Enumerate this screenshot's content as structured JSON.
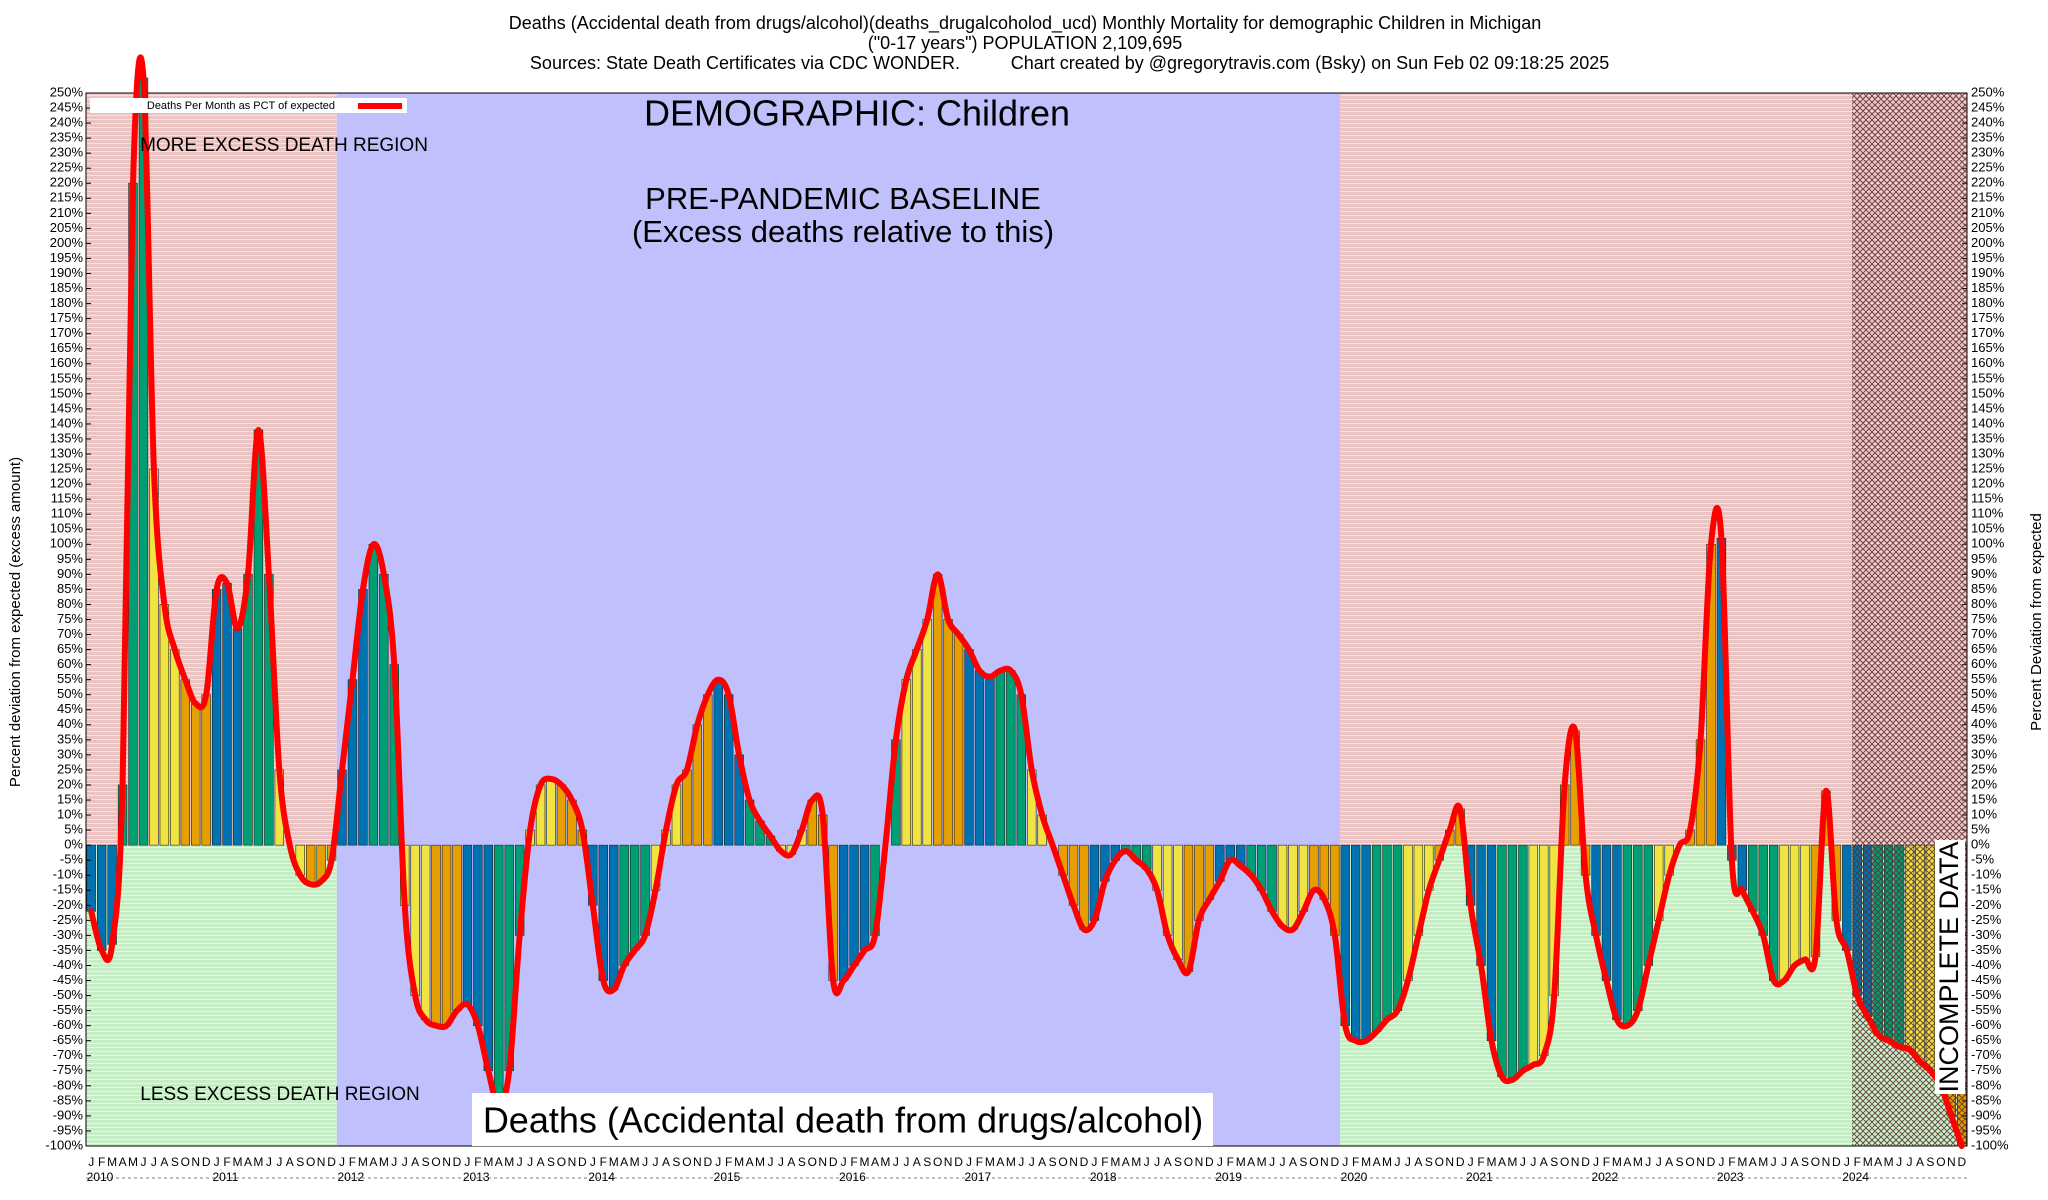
{
  "chart_data": {
    "type": "bar",
    "title": "Deaths (Accidental death from drugs/alcohol)(deaths_drugalcoholod_ucd) Monthly Mortality for demographic Children in Michigan",
    "subtitle": "(\"0-17 years\") POPULATION 2,109,695",
    "source": "Sources: State Death Certificates via CDC WONDER.",
    "credit": "Chart created by @gregorytravis.com (Bsky) on Sun Feb 02 09:18:25 2025",
    "annotations": {
      "demographic": "DEMOGRAPHIC: Children",
      "baseline": "PRE-PANDEMIC BASELINE",
      "baseline_note": "(Excess deaths relative to this)",
      "more": "MORE EXCESS DEATH REGION",
      "less": "LESS EXCESS DEATH REGION",
      "cause": "Deaths (Accidental death from drugs/alcohol)",
      "incomplete": "INCOMPLETE DATA"
    },
    "y_label": "Percent deviation from expected (excess amount)",
    "y2_label": "Percent Deviation from expected",
    "legend": "top-left",
    "series": [
      {
        "name": "Deaths Per Month as PCT of expected",
        "color": "#ff0000",
        "quarter_colors": [
          "#0072b2",
          "#009e73",
          "#f0e442",
          "#e69f00"
        ],
        "values": [
          -22,
          -35,
          -33,
          20,
          220,
          255,
          125,
          80,
          65,
          55,
          47,
          50,
          85,
          87,
          72,
          90,
          138,
          90,
          25,
          0,
          -10,
          -13,
          -12,
          -5,
          25,
          55,
          85,
          100,
          90,
          60,
          -20,
          -50,
          -58,
          -60,
          -60,
          -55,
          -53,
          -60,
          -75,
          -87,
          -75,
          -30,
          5,
          20,
          22,
          20,
          15,
          5,
          -20,
          -45,
          -48,
          -40,
          -35,
          -30,
          -15,
          5,
          20,
          25,
          40,
          50,
          55,
          50,
          30,
          15,
          8,
          3,
          -2,
          -3,
          5,
          15,
          10,
          -45,
          -45,
          -40,
          -35,
          -30,
          0,
          35,
          55,
          65,
          75,
          90,
          75,
          70,
          65,
          58,
          56,
          58,
          58,
          50,
          25,
          10,
          0,
          -10,
          -20,
          -28,
          -25,
          -12,
          -5,
          -2,
          -5,
          -8,
          -15,
          -30,
          -38,
          -42,
          -25,
          -18,
          -12,
          -5,
          -7,
          -10,
          -15,
          -22,
          -27,
          -28,
          -22,
          -15,
          -18,
          -30,
          -60,
          -65,
          -65,
          -62,
          -58,
          -55,
          -45,
          -30,
          -15,
          -5,
          5,
          12,
          -20,
          -40,
          -65,
          -77,
          -78,
          -75,
          -73,
          -70,
          -50,
          20,
          38,
          -10,
          -30,
          -45,
          -58,
          -60,
          -55,
          -40,
          -25,
          -10,
          0,
          5,
          35,
          100,
          102,
          -5,
          -15,
          -22,
          -30,
          -45,
          -45,
          -40,
          -38,
          -37,
          18,
          -25,
          -35,
          -50,
          -57,
          -63,
          -65,
          -67,
          -68,
          -72,
          -75,
          -80,
          -90,
          -100
        ]
      }
    ],
    "categories": [
      "J",
      "F",
      "M",
      "A",
      "M",
      "J",
      "J",
      "A",
      "S",
      "O",
      "N",
      "D",
      "J",
      "F",
      "M",
      "A",
      "M",
      "J",
      "J",
      "A",
      "S",
      "O",
      "N",
      "D",
      "J",
      "F",
      "M",
      "A",
      "M",
      "J",
      "J",
      "A",
      "S",
      "O",
      "N",
      "D",
      "J",
      "F",
      "M",
      "A",
      "M",
      "J",
      "J",
      "A",
      "S",
      "O",
      "N",
      "D",
      "J",
      "F",
      "M",
      "A",
      "M",
      "J",
      "J",
      "A",
      "S",
      "O",
      "N",
      "D",
      "J",
      "F",
      "M",
      "A",
      "M",
      "J",
      "J",
      "A",
      "S",
      "O",
      "N",
      "D",
      "J",
      "F",
      "M",
      "A",
      "M",
      "J",
      "J",
      "A",
      "S",
      "O",
      "N",
      "D",
      "J",
      "F",
      "M",
      "A",
      "M",
      "J",
      "J",
      "A",
      "S",
      "O",
      "N",
      "D",
      "J",
      "F",
      "M",
      "A",
      "M",
      "J",
      "J",
      "A",
      "S",
      "O",
      "N",
      "D",
      "J",
      "F",
      "M",
      "A",
      "M",
      "J",
      "J",
      "A",
      "S",
      "O",
      "N",
      "D",
      "J",
      "F",
      "M",
      "A",
      "M",
      "J",
      "J",
      "A",
      "S",
      "O",
      "N",
      "D",
      "J",
      "F",
      "M",
      "A",
      "M",
      "J",
      "J",
      "A",
      "S",
      "O",
      "N",
      "D",
      "J",
      "F",
      "M",
      "A",
      "M",
      "J",
      "J",
      "A",
      "S",
      "O",
      "N",
      "D",
      "J",
      "F",
      "M",
      "A",
      "M",
      "J",
      "J",
      "A",
      "S",
      "O",
      "N",
      "D",
      "J",
      "F",
      "M",
      "A",
      "M",
      "J",
      "J",
      "A",
      "S",
      "O",
      "N",
      "D"
    ],
    "years": [
      "2010",
      "2011",
      "2012",
      "2013",
      "2014",
      "2015",
      "2016",
      "2017",
      "2018",
      "2019",
      "2020",
      "2021",
      "2022",
      "2023",
      "2024"
    ],
    "ylim": [
      -100,
      250
    ],
    "yticks": [
      {
        "value": -100,
        "label": "-100%"
      },
      {
        "value": -95,
        "label": "-95%"
      },
      {
        "value": -90,
        "label": "-90%"
      },
      {
        "value": -85,
        "label": "-85%"
      },
      {
        "value": -80,
        "label": "-80%"
      },
      {
        "value": -75,
        "label": "-75%"
      },
      {
        "value": -70,
        "label": "-70%"
      },
      {
        "value": -65,
        "label": "-65%"
      },
      {
        "value": -60,
        "label": "-60%"
      },
      {
        "value": -55,
        "label": "-55%"
      },
      {
        "value": -50,
        "label": "-50%"
      },
      {
        "value": -45,
        "label": "-45%"
      },
      {
        "value": -40,
        "label": "-40%"
      },
      {
        "value": -35,
        "label": "-35%"
      },
      {
        "value": -30,
        "label": "-30%"
      },
      {
        "value": -25,
        "label": "-25%"
      },
      {
        "value": -20,
        "label": "-20%"
      },
      {
        "value": -15,
        "label": "-15%"
      },
      {
        "value": -10,
        "label": "-10%"
      },
      {
        "value": -5,
        "label": "-5%"
      },
      {
        "value": 0,
        "label": "0%"
      },
      {
        "value": 5,
        "label": "5%"
      },
      {
        "value": 10,
        "label": "10%"
      },
      {
        "value": 15,
        "label": "15%"
      },
      {
        "value": 20,
        "label": "20%"
      },
      {
        "value": 25,
        "label": "25%"
      },
      {
        "value": 30,
        "label": "30%"
      },
      {
        "value": 35,
        "label": "35%"
      },
      {
        "value": 40,
        "label": "40%"
      },
      {
        "value": 45,
        "label": "45%"
      },
      {
        "value": 50,
        "label": "50%"
      },
      {
        "value": 55,
        "label": "55%"
      },
      {
        "value": 60,
        "label": "60%"
      },
      {
        "value": 65,
        "label": "65%"
      },
      {
        "value": 70,
        "label": "70%"
      },
      {
        "value": 75,
        "label": "75%"
      },
      {
        "value": 80,
        "label": "80%"
      },
      {
        "value": 85,
        "label": "85%"
      },
      {
        "value": 90,
        "label": "90%"
      },
      {
        "value": 95,
        "label": "95%"
      },
      {
        "value": 100,
        "label": "100%"
      },
      {
        "value": 105,
        "label": "105%"
      },
      {
        "value": 110,
        "label": "110%"
      },
      {
        "value": 115,
        "label": "115%"
      },
      {
        "value": 120,
        "label": "120%"
      },
      {
        "value": 125,
        "label": "125%"
      },
      {
        "value": 130,
        "label": "130%"
      },
      {
        "value": 135,
        "label": "135%"
      },
      {
        "value": 140,
        "label": "140%"
      },
      {
        "value": 145,
        "label": "145%"
      },
      {
        "value": 150,
        "label": "150%"
      },
      {
        "value": 155,
        "label": "155%"
      },
      {
        "value": 160,
        "label": "160%"
      },
      {
        "value": 165,
        "label": "165%"
      },
      {
        "value": 170,
        "label": "170%"
      },
      {
        "value": 175,
        "label": "175%"
      },
      {
        "value": 180,
        "label": "180%"
      },
      {
        "value": 185,
        "label": "185%"
      },
      {
        "value": 190,
        "label": "190%"
      },
      {
        "value": 195,
        "label": "195%"
      },
      {
        "value": 200,
        "label": "200%"
      },
      {
        "value": 205,
        "label": "205%"
      },
      {
        "value": 210,
        "label": "210%"
      },
      {
        "value": 215,
        "label": "215%"
      },
      {
        "value": 220,
        "label": "220%"
      },
      {
        "value": 225,
        "label": "225%"
      },
      {
        "value": 230,
        "label": "230%"
      },
      {
        "value": 235,
        "label": "235%"
      },
      {
        "value": 240,
        "label": "240%"
      },
      {
        "value": 245,
        "label": "245%"
      },
      {
        "value": 250,
        "label": "250%"
      }
    ]
  }
}
